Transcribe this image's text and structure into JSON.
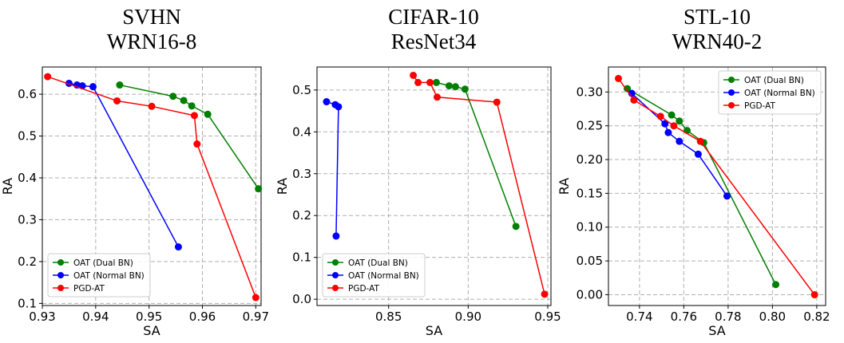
{
  "chart_data": [
    {
      "type": "line",
      "title": [
        "SVHN",
        "WRN16-8"
      ],
      "xlabel": "SA",
      "ylabel": "RA",
      "xlim": [
        0.93,
        0.971
      ],
      "ylim": [
        0.095,
        0.665
      ],
      "xticks": [
        0.93,
        0.94,
        0.95,
        0.96,
        0.97
      ],
      "xtick_labels": [
        "0.93",
        "0.94",
        "0.95",
        "0.96",
        "0.97"
      ],
      "yticks": [
        0.1,
        0.2,
        0.3,
        0.4,
        0.5,
        0.6
      ],
      "ytick_labels": [
        "0.1",
        "0.2",
        "0.3",
        "0.4",
        "0.5",
        "0.6"
      ],
      "grid": true,
      "legend_position": "bottom-left",
      "series": [
        {
          "name": "OAT (Dual BN)",
          "color": "#008000",
          "x": [
            0.9445,
            0.9545,
            0.9565,
            0.958,
            0.961,
            0.9705
          ],
          "y": [
            0.622,
            0.595,
            0.585,
            0.572,
            0.552,
            0.374
          ]
        },
        {
          "name": "OAT (Normal BN)",
          "color": "#0000ff",
          "x": [
            0.935,
            0.9365,
            0.9375,
            0.9395,
            0.9555
          ],
          "y": [
            0.626,
            0.622,
            0.62,
            0.618,
            0.235
          ]
        },
        {
          "name": "PGD-AT",
          "color": "#ff0000",
          "x": [
            0.931,
            0.944,
            0.9505,
            0.9585,
            0.959,
            0.97
          ],
          "y": [
            0.642,
            0.584,
            0.571,
            0.549,
            0.481,
            0.114
          ]
        }
      ]
    },
    {
      "type": "line",
      "title": [
        "CIFAR-10",
        "ResNet34"
      ],
      "xlabel": "SA",
      "ylabel": "RA",
      "xlim": [
        0.805,
        0.952
      ],
      "ylim": [
        -0.015,
        0.555
      ],
      "xticks": [
        0.85,
        0.9,
        0.95
      ],
      "xtick_labels": [
        "0.85",
        "0.90",
        "0.95"
      ],
      "yticks": [
        0.0,
        0.1,
        0.2,
        0.3,
        0.4,
        0.5
      ],
      "ytick_labels": [
        "0.0",
        "0.1",
        "0.2",
        "0.3",
        "0.4",
        "0.5"
      ],
      "grid": true,
      "legend_position": "bottom-left",
      "series": [
        {
          "name": "OAT (Dual BN)",
          "color": "#008000",
          "x": [
            0.88,
            0.888,
            0.892,
            0.898,
            0.93
          ],
          "y": [
            0.518,
            0.51,
            0.508,
            0.502,
            0.174
          ]
        },
        {
          "name": "OAT (Normal BN)",
          "color": "#0000ff",
          "x": [
            0.811,
            0.8165,
            0.8185,
            0.817
          ],
          "y": [
            0.472,
            0.465,
            0.46,
            0.151
          ]
        },
        {
          "name": "PGD-AT",
          "color": "#ff0000",
          "x": [
            0.8655,
            0.8685,
            0.876,
            0.8805,
            0.918,
            0.948
          ],
          "y": [
            0.535,
            0.518,
            0.518,
            0.483,
            0.471,
            0.012
          ]
        }
      ]
    },
    {
      "type": "line",
      "title": [
        "STL-10",
        "WRN40-2"
      ],
      "xlabel": "SA",
      "ylabel": "RA",
      "xlim": [
        0.726,
        0.824
      ],
      "ylim": [
        -0.016,
        0.337
      ],
      "xticks": [
        0.74,
        0.76,
        0.78,
        0.8,
        0.82
      ],
      "xtick_labels": [
        "0.74",
        "0.76",
        "0.78",
        "0.80",
        "0.82"
      ],
      "yticks": [
        0.0,
        0.05,
        0.1,
        0.15,
        0.2,
        0.25,
        0.3
      ],
      "ytick_labels": [
        "0.00",
        "0.05",
        "0.10",
        "0.15",
        "0.20",
        "0.25",
        "0.30"
      ],
      "grid": true,
      "legend_position": "top-right",
      "series": [
        {
          "name": "OAT (Dual BN)",
          "color": "#008000",
          "x": [
            0.7345,
            0.7545,
            0.758,
            0.7615,
            0.769,
            0.8015
          ],
          "y": [
            0.305,
            0.266,
            0.257,
            0.243,
            0.225,
            0.015
          ]
        },
        {
          "name": "OAT (Normal BN)",
          "color": "#0000ff",
          "x": [
            0.7365,
            0.7515,
            0.753,
            0.758,
            0.7665,
            0.7795
          ],
          "y": [
            0.298,
            0.253,
            0.24,
            0.227,
            0.208,
            0.146
          ]
        },
        {
          "name": "PGD-AT",
          "color": "#ff0000",
          "x": [
            0.7305,
            0.7375,
            0.7495,
            0.7555,
            0.7675,
            0.819
          ],
          "y": [
            0.32,
            0.288,
            0.264,
            0.25,
            0.227,
            0.0
          ]
        }
      ]
    }
  ]
}
